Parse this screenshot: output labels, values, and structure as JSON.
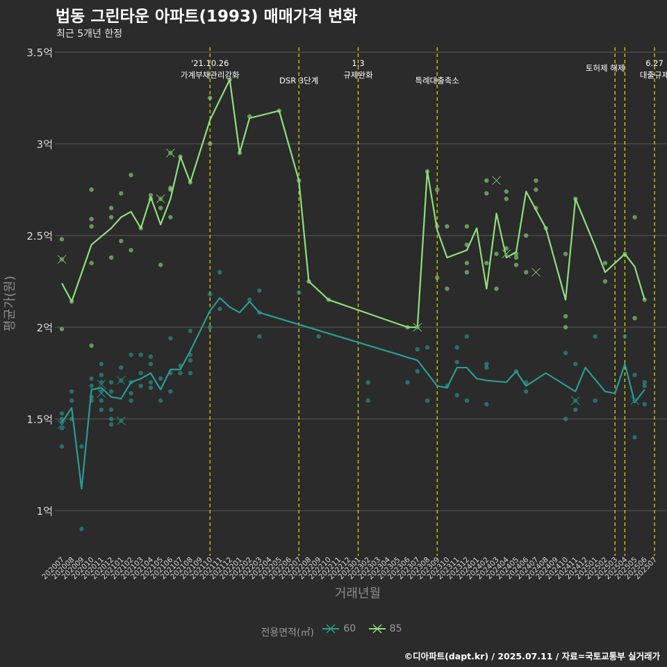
{
  "title": "법동 그린타운 아파트(1993) 매매가격 변화",
  "subtitle": "최근 5개년 한정",
  "caption": "©디아파트(dapt.kr) / 2025.07.11 / 자료=국토교통부 실거래가",
  "legend": {
    "title": "전용면적(㎡)",
    "items": [
      {
        "label": "60",
        "color": "#2aa198"
      },
      {
        "label": "85",
        "color": "#9de085"
      }
    ]
  },
  "colors": {
    "background": "#2b2b2b",
    "grid": "#5a5a5a",
    "event_line": "#e5e500",
    "series_60": "#2a9d96",
    "series_85": "#8fe07e"
  },
  "chart_data": {
    "type": "line",
    "xlabel": "거래년월",
    "ylabel": "평균가(원)",
    "ylim": [
      0.8,
      3.5
    ],
    "ytick_values": [
      1,
      1.5,
      2,
      2.5,
      3,
      3.5
    ],
    "ytick_labels": [
      "1억",
      "1.5억",
      "2억",
      "2.5억",
      "3억",
      "3.5억"
    ],
    "x": [
      "202007",
      "202008",
      "202009",
      "202010",
      "202011",
      "202012",
      "202101",
      "202102",
      "202103",
      "202104",
      "202105",
      "202106",
      "202107",
      "202108",
      "202109",
      "202110",
      "202111",
      "202112",
      "202201",
      "202202",
      "202203",
      "202204",
      "202205",
      "202206",
      "202207",
      "202208",
      "202209",
      "202210",
      "202211",
      "202212",
      "202301",
      "202302",
      "202303",
      "202304",
      "202305",
      "202306",
      "202307",
      "202308",
      "202309",
      "202310",
      "202311",
      "202312",
      "202401",
      "202402",
      "202403",
      "202404",
      "202405",
      "202406",
      "202407",
      "202408",
      "202409",
      "202410",
      "202411",
      "202412",
      "202501",
      "202502",
      "202503",
      "202504",
      "202505",
      "202506",
      "202507"
    ],
    "series": [
      {
        "name": "60",
        "values": [
          1.48,
          1.56,
          1.12,
          1.66,
          1.67,
          1.62,
          1.61,
          1.7,
          1.72,
          1.75,
          1.66,
          1.77,
          1.77,
          1.87,
          null,
          2.09,
          2.16,
          2.11,
          2.08,
          2.14,
          2.08,
          null,
          null,
          null,
          null,
          null,
          null,
          null,
          null,
          null,
          null,
          null,
          null,
          null,
          null,
          null,
          1.82,
          1.75,
          1.68,
          1.67,
          1.78,
          1.78,
          1.72,
          1.71,
          null,
          1.7,
          1.76,
          1.68,
          null,
          1.75,
          null,
          null,
          1.65,
          1.78,
          null,
          1.65,
          1.64,
          1.8,
          1.59,
          1.66,
          null
        ]
      },
      {
        "name": "85",
        "values": [
          2.24,
          2.14,
          null,
          2.45,
          null,
          2.54,
          2.6,
          2.63,
          2.54,
          2.71,
          2.56,
          2.7,
          2.93,
          2.79,
          null,
          3.13,
          null,
          3.35,
          2.95,
          3.14,
          null,
          null,
          3.18,
          null,
          2.8,
          2.25,
          null,
          2.15,
          null,
          null,
          null,
          null,
          null,
          null,
          null,
          2.0,
          2.0,
          2.85,
          2.53,
          2.38,
          null,
          2.42,
          2.54,
          2.21,
          2.62,
          2.38,
          2.41,
          2.74,
          null,
          2.54,
          null,
          2.15,
          2.7,
          null,
          2.44,
          2.3,
          null,
          2.4,
          2.33,
          2.15,
          null
        ]
      }
    ],
    "points_85": [
      {
        "x": "202007",
        "y": 2.48
      },
      {
        "x": "202007",
        "y": 2.37
      },
      {
        "x": "202007",
        "y": 1.99
      },
      {
        "x": "202008",
        "y": 2.14
      },
      {
        "x": "202010",
        "y": 2.75
      },
      {
        "x": "202010",
        "y": 2.59
      },
      {
        "x": "202010",
        "y": 2.55
      },
      {
        "x": "202010",
        "y": 2.35
      },
      {
        "x": "202010",
        "y": 1.9
      },
      {
        "x": "202012",
        "y": 2.65
      },
      {
        "x": "202012",
        "y": 2.6
      },
      {
        "x": "202012",
        "y": 2.38
      },
      {
        "x": "202101",
        "y": 2.73
      },
      {
        "x": "202101",
        "y": 2.47
      },
      {
        "x": "202102",
        "y": 2.83
      },
      {
        "x": "202102",
        "y": 2.42
      },
      {
        "x": "202103",
        "y": 2.54
      },
      {
        "x": "202104",
        "y": 2.72
      },
      {
        "x": "202104",
        "y": 2.7
      },
      {
        "x": "202105",
        "y": 2.7
      },
      {
        "x": "202105",
        "y": 2.65
      },
      {
        "x": "202105",
        "y": 2.34
      },
      {
        "x": "202106",
        "y": 2.95
      },
      {
        "x": "202106",
        "y": 2.76
      },
      {
        "x": "202106",
        "y": 2.75
      },
      {
        "x": "202106",
        "y": 2.6
      },
      {
        "x": "202107",
        "y": 2.93
      },
      {
        "x": "202108",
        "y": 2.79
      },
      {
        "x": "202110",
        "y": 3.25
      },
      {
        "x": "202110",
        "y": 3.0
      },
      {
        "x": "202112",
        "y": 3.35
      },
      {
        "x": "202201",
        "y": 2.95
      },
      {
        "x": "202202",
        "y": 3.15
      },
      {
        "x": "202205",
        "y": 3.18
      },
      {
        "x": "202207",
        "y": 2.8
      },
      {
        "x": "202208",
        "y": 2.25
      },
      {
        "x": "202210",
        "y": 2.15
      },
      {
        "x": "202306",
        "y": 2.0
      },
      {
        "x": "202307",
        "y": 2.0
      },
      {
        "x": "202308",
        "y": 2.85
      },
      {
        "x": "202309",
        "y": 2.75
      },
      {
        "x": "202309",
        "y": 2.55
      },
      {
        "x": "202309",
        "y": 2.27
      },
      {
        "x": "202310",
        "y": 2.55
      },
      {
        "x": "202310",
        "y": 2.21
      },
      {
        "x": "202312",
        "y": 2.55
      },
      {
        "x": "202312",
        "y": 2.45
      },
      {
        "x": "202312",
        "y": 2.35
      },
      {
        "x": "202312",
        "y": 2.3
      },
      {
        "x": "202402",
        "y": 2.8
      },
      {
        "x": "202402",
        "y": 2.73
      },
      {
        "x": "202402",
        "y": 2.35
      },
      {
        "x": "202403",
        "y": 2.4
      },
      {
        "x": "202403",
        "y": 2.21
      },
      {
        "x": "202404",
        "y": 2.74
      },
      {
        "x": "202404",
        "y": 2.7
      },
      {
        "x": "202404",
        "y": 2.43
      },
      {
        "x": "202405",
        "y": 2.4
      },
      {
        "x": "202405",
        "y": 2.38
      },
      {
        "x": "202405",
        "y": 2.34
      },
      {
        "x": "202406",
        "y": 2.5
      },
      {
        "x": "202406",
        "y": 2.3
      },
      {
        "x": "202407",
        "y": 2.8
      },
      {
        "x": "202407",
        "y": 2.75
      },
      {
        "x": "202407",
        "y": 2.65
      },
      {
        "x": "202408",
        "y": 2.54
      },
      {
        "x": "202410",
        "y": 2.4
      },
      {
        "x": "202410",
        "y": 2.06
      },
      {
        "x": "202410",
        "y": 2.0
      },
      {
        "x": "202411",
        "y": 2.7
      },
      {
        "x": "202502",
        "y": 2.35
      },
      {
        "x": "202502",
        "y": 2.25
      },
      {
        "x": "202504",
        "y": 2.4
      },
      {
        "x": "202505",
        "y": 2.6
      },
      {
        "x": "202505",
        "y": 2.05
      },
      {
        "x": "202506",
        "y": 2.15
      }
    ],
    "points_60": [
      {
        "x": "202007",
        "y": 1.53
      },
      {
        "x": "202007",
        "y": 1.5
      },
      {
        "x": "202007",
        "y": 1.48
      },
      {
        "x": "202007",
        "y": 1.45
      },
      {
        "x": "202007",
        "y": 1.35
      },
      {
        "x": "202008",
        "y": 1.65
      },
      {
        "x": "202008",
        "y": 1.6
      },
      {
        "x": "202008",
        "y": 1.5
      },
      {
        "x": "202009",
        "y": 1.35
      },
      {
        "x": "202009",
        "y": 0.9
      },
      {
        "x": "202010",
        "y": 1.72
      },
      {
        "x": "202010",
        "y": 1.68
      },
      {
        "x": "202010",
        "y": 1.62
      },
      {
        "x": "202010",
        "y": 1.6
      },
      {
        "x": "202011",
        "y": 1.8
      },
      {
        "x": "202011",
        "y": 1.74
      },
      {
        "x": "202011",
        "y": 1.7
      },
      {
        "x": "202011",
        "y": 1.65
      },
      {
        "x": "202011",
        "y": 1.6
      },
      {
        "x": "202011",
        "y": 1.55
      },
      {
        "x": "202012",
        "y": 1.7
      },
      {
        "x": "202012",
        "y": 1.65
      },
      {
        "x": "202012",
        "y": 1.55
      },
      {
        "x": "202012",
        "y": 1.5
      },
      {
        "x": "202012",
        "y": 1.47
      },
      {
        "x": "202101",
        "y": 1.78
      },
      {
        "x": "202101",
        "y": 1.71
      },
      {
        "x": "202101",
        "y": 1.49
      },
      {
        "x": "202102",
        "y": 1.85
      },
      {
        "x": "202102",
        "y": 1.7
      },
      {
        "x": "202102",
        "y": 1.64
      },
      {
        "x": "202102",
        "y": 1.6
      },
      {
        "x": "202103",
        "y": 1.85
      },
      {
        "x": "202103",
        "y": 1.75
      },
      {
        "x": "202103",
        "y": 1.68
      },
      {
        "x": "202104",
        "y": 1.84
      },
      {
        "x": "202104",
        "y": 1.8
      },
      {
        "x": "202104",
        "y": 1.7
      },
      {
        "x": "202104",
        "y": 1.67
      },
      {
        "x": "202105",
        "y": 1.72
      },
      {
        "x": "202105",
        "y": 1.6
      },
      {
        "x": "202106",
        "y": 1.94
      },
      {
        "x": "202106",
        "y": 1.75
      },
      {
        "x": "202106",
        "y": 1.65
      },
      {
        "x": "202107",
        "y": 1.79
      },
      {
        "x": "202107",
        "y": 1.75
      },
      {
        "x": "202108",
        "y": 1.98
      },
      {
        "x": "202108",
        "y": 1.85
      },
      {
        "x": "202108",
        "y": 1.82
      },
      {
        "x": "202108",
        "y": 1.75
      },
      {
        "x": "202110",
        "y": 2.18
      },
      {
        "x": "202110",
        "y": 2.0
      },
      {
        "x": "202111",
        "y": 2.3
      },
      {
        "x": "202111",
        "y": 2.1
      },
      {
        "x": "202202",
        "y": 2.15
      },
      {
        "x": "202203",
        "y": 2.2
      },
      {
        "x": "202203",
        "y": 2.08
      },
      {
        "x": "202203",
        "y": 1.95
      },
      {
        "x": "202207",
        "y": 2.19
      },
      {
        "x": "202209",
        "y": 1.95
      },
      {
        "x": "202302",
        "y": 1.7
      },
      {
        "x": "202302",
        "y": 1.6
      },
      {
        "x": "202306",
        "y": 1.7
      },
      {
        "x": "202307",
        "y": 1.88
      },
      {
        "x": "202307",
        "y": 1.76
      },
      {
        "x": "202308",
        "y": 1.89
      },
      {
        "x": "202308",
        "y": 1.6
      },
      {
        "x": "202310",
        "y": 1.68
      },
      {
        "x": "202311",
        "y": 1.89
      },
      {
        "x": "202311",
        "y": 1.81
      },
      {
        "x": "202311",
        "y": 1.63
      },
      {
        "x": "202312",
        "y": 1.95
      },
      {
        "x": "202312",
        "y": 1.6
      },
      {
        "x": "202402",
        "y": 1.8
      },
      {
        "x": "202402",
        "y": 1.78
      },
      {
        "x": "202402",
        "y": 1.58
      },
      {
        "x": "202405",
        "y": 1.76
      },
      {
        "x": "202406",
        "y": 1.7
      },
      {
        "x": "202406",
        "y": 1.65
      },
      {
        "x": "202410",
        "y": 1.86
      },
      {
        "x": "202410",
        "y": 1.5
      },
      {
        "x": "202411",
        "y": 1.8
      },
      {
        "x": "202411",
        "y": 1.6
      },
      {
        "x": "202411",
        "y": 1.55
      },
      {
        "x": "202501",
        "y": 1.95
      },
      {
        "x": "202501",
        "y": 1.6
      },
      {
        "x": "202504",
        "y": 1.95
      },
      {
        "x": "202505",
        "y": 1.74
      },
      {
        "x": "202505",
        "y": 1.6
      },
      {
        "x": "202505",
        "y": 1.4
      },
      {
        "x": "202506",
        "y": 1.7
      },
      {
        "x": "202506",
        "y": 1.68
      },
      {
        "x": "202506",
        "y": 1.58
      }
    ],
    "cross_markers": [
      {
        "series": "85",
        "x": "202007",
        "y": 2.37
      },
      {
        "series": "85",
        "x": "202105",
        "y": 2.7
      },
      {
        "series": "85",
        "x": "202106",
        "y": 2.95
      },
      {
        "series": "85",
        "x": "202307",
        "y": 2.0
      },
      {
        "series": "85",
        "x": "202403",
        "y": 2.8
      },
      {
        "series": "85",
        "x": "202404",
        "y": 2.4
      },
      {
        "series": "85",
        "x": "202407",
        "y": 2.3
      },
      {
        "series": "60",
        "x": "202007",
        "y": 1.47
      },
      {
        "series": "60",
        "x": "202011",
        "y": 1.69
      },
      {
        "series": "60",
        "x": "202011",
        "y": 1.64
      },
      {
        "series": "60",
        "x": "202101",
        "y": 1.71
      },
      {
        "series": "60",
        "x": "202101",
        "y": 1.49
      },
      {
        "series": "60",
        "x": "202411",
        "y": 1.6
      },
      {
        "series": "60",
        "x": "202505",
        "y": 1.6
      }
    ],
    "event_lines": [
      {
        "x": "202110",
        "lines": [
          "'21.10.26",
          "가계부채관리강화"
        ]
      },
      {
        "x": "202207",
        "lines": [
          "DSR 3단계"
        ]
      },
      {
        "x": "202301",
        "lines": [
          "1.3",
          "규제완화"
        ]
      },
      {
        "x": "202309",
        "lines": [
          "특례대출축소"
        ]
      },
      {
        "x": "202503",
        "lines": [
          "토허제 해제"
        ]
      },
      {
        "x": "202504",
        "lines": []
      },
      {
        "x": "202507",
        "lines": [
          "6.27",
          "대출규제"
        ]
      }
    ]
  }
}
